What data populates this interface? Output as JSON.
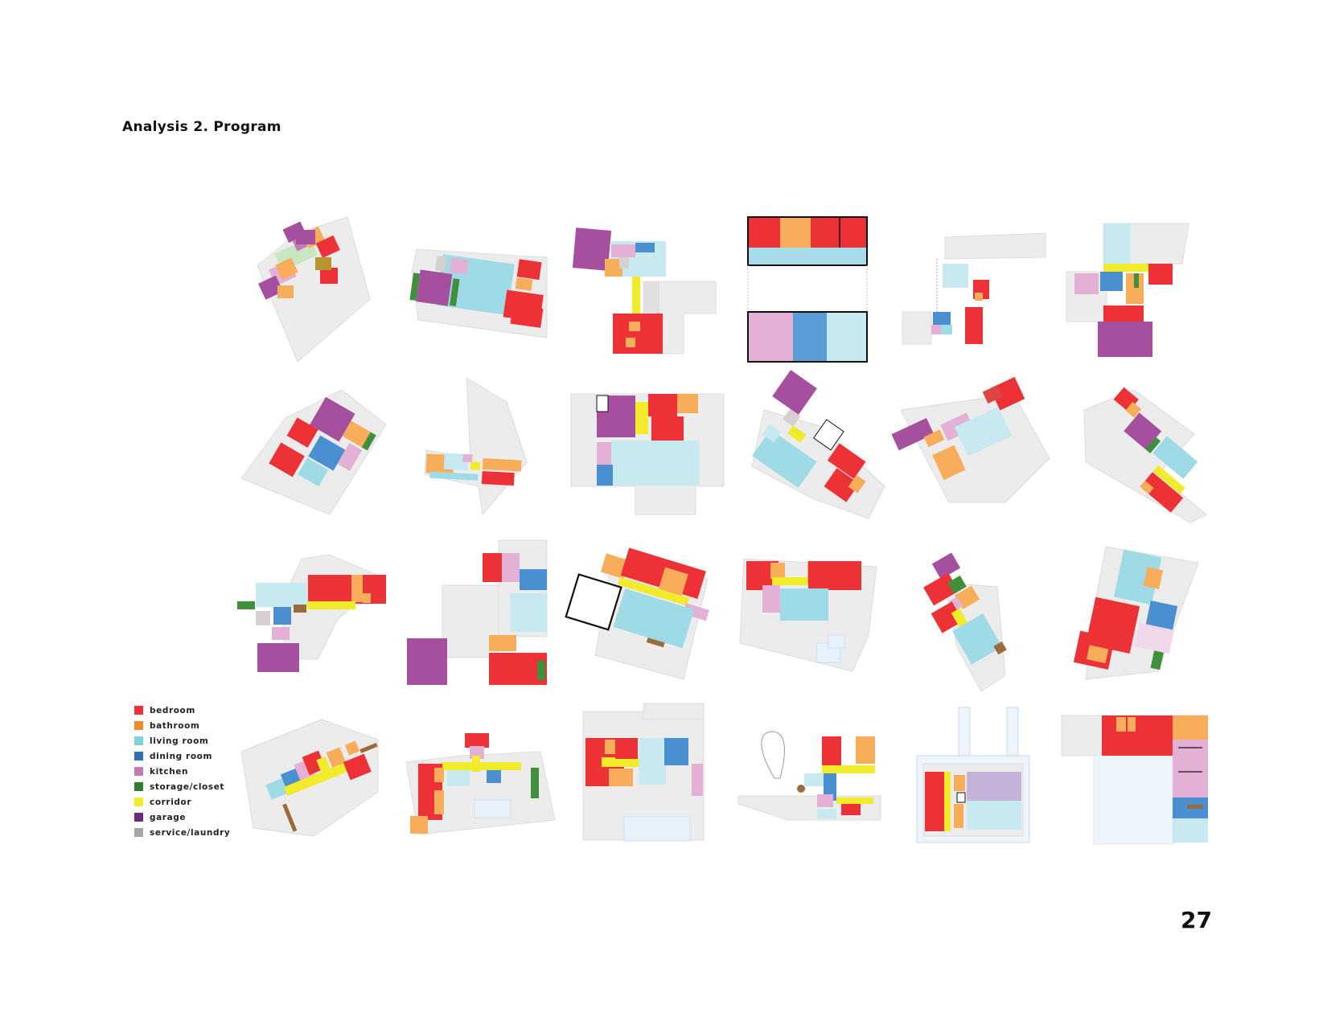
{
  "page": {
    "title": "Analysis 2. Program",
    "page_number": "27"
  },
  "legend": [
    {
      "label": "bedroom",
      "color": "#ec3237"
    },
    {
      "label": "bathroom",
      "color": "#f08a2a"
    },
    {
      "label": "living room",
      "color": "#7fd0dd"
    },
    {
      "label": "dining room",
      "color": "#2f6fb8"
    },
    {
      "label": "kitchen",
      "color": "#c778b6"
    },
    {
      "label": "storage/closet",
      "color": "#2e7d32"
    },
    {
      "label": "corridor",
      "color": "#f2eb2c"
    },
    {
      "label": "garage",
      "color": "#6a2a80"
    },
    {
      "label": "service/laundry",
      "color": "#a5a5a5"
    }
  ]
}
